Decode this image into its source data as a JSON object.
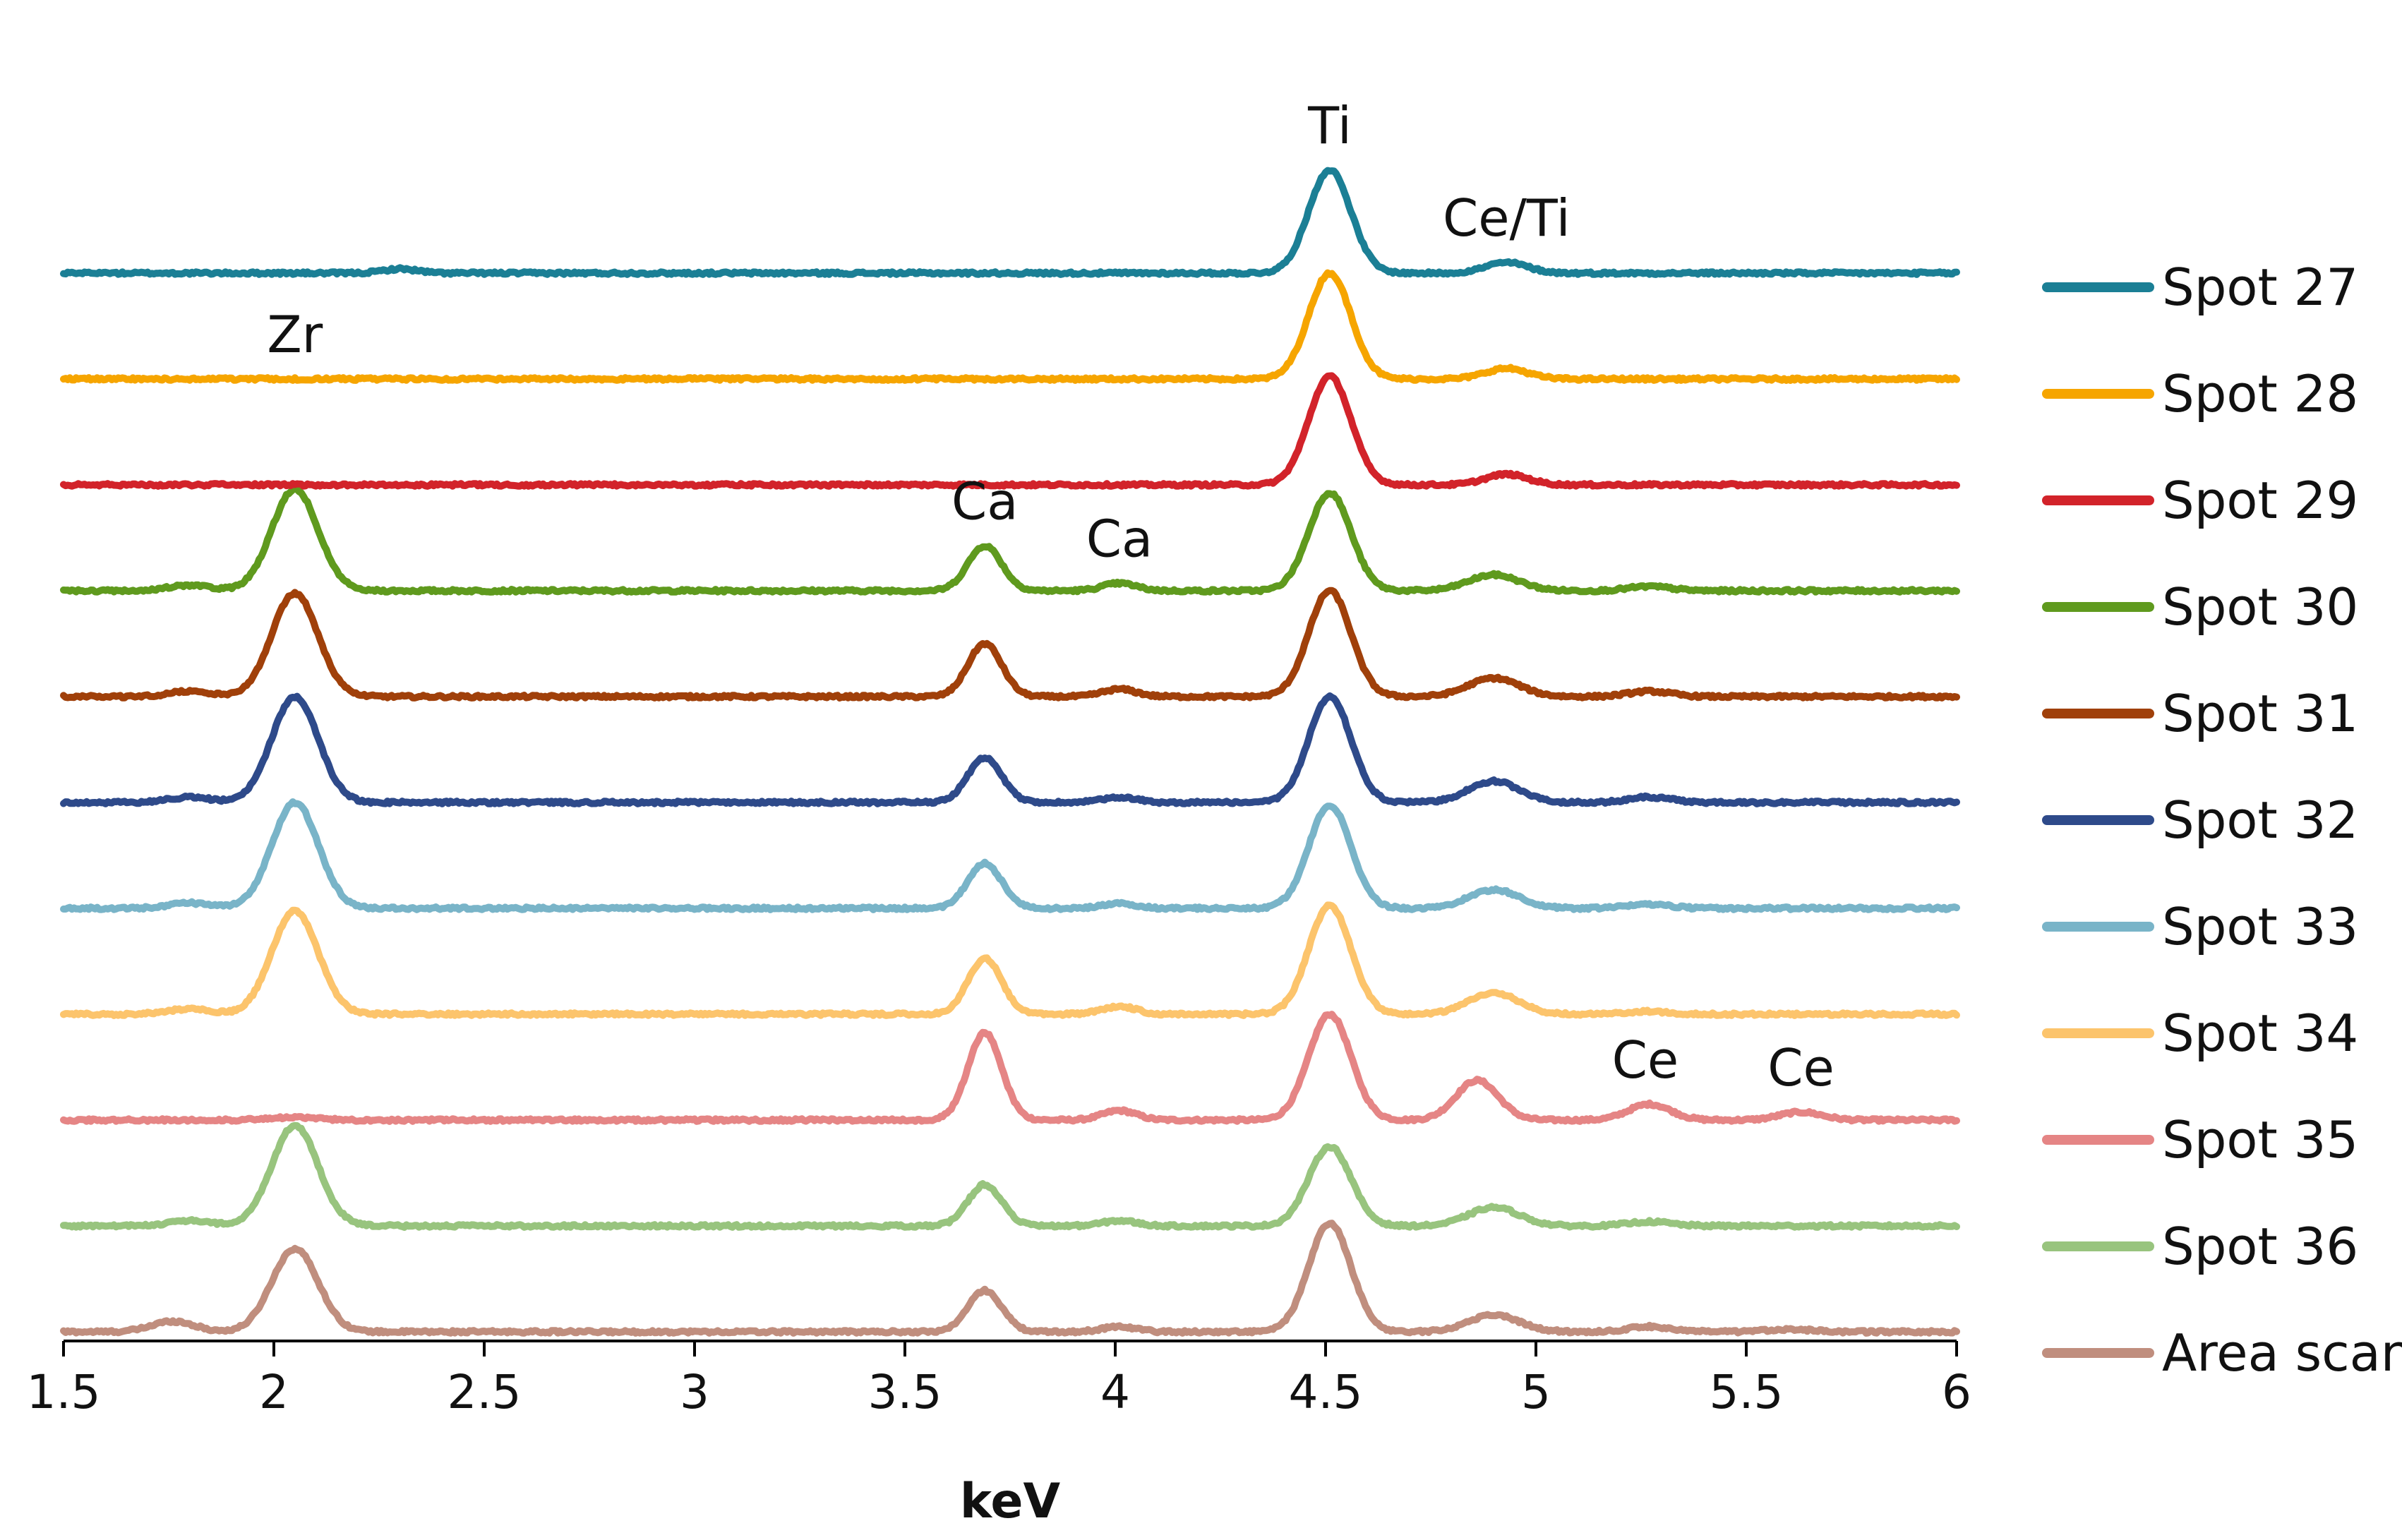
{
  "chart_data": {
    "type": "line",
    "title": "",
    "xlabel": "keV",
    "ylabel": "",
    "xlim": [
      1.5,
      6
    ],
    "x_ticks": [
      "1.5",
      "2",
      "2.5",
      "3",
      "3.5",
      "4",
      "4.5",
      "5",
      "5.5",
      "6"
    ],
    "y_axis_visible": false,
    "grid": false,
    "legend_position": "right",
    "peak_labels": [
      {
        "text": "Ti",
        "x": 4.51,
        "series": "Spot 27"
      },
      {
        "text": "Ce/Ti",
        "x": 4.93,
        "series": "Spot 27"
      },
      {
        "text": "Zr",
        "x": 2.05,
        "series": "Spot 28"
      },
      {
        "text": "Ca",
        "x": 3.69,
        "series": "Spot 30"
      },
      {
        "text": "Ca",
        "x": 4.01,
        "series": "Spot 30"
      },
      {
        "text": "Ce",
        "x": 5.26,
        "series": "Spot 35"
      },
      {
        "text": "Ce",
        "x": 5.63,
        "series": "Spot 35"
      }
    ],
    "series": [
      {
        "name": "Spot 27",
        "color": "#1b7f95",
        "offset": 14.0,
        "peaks": [
          [
            2.3,
            0.08,
            0.04
          ],
          [
            4.51,
            1.95,
            0.05
          ],
          [
            4.93,
            0.2,
            0.05
          ]
        ]
      },
      {
        "name": "Spot 28",
        "color": "#f6a500",
        "offset": 12.0,
        "peaks": [
          [
            4.51,
            2.0,
            0.05
          ],
          [
            4.93,
            0.2,
            0.05
          ]
        ]
      },
      {
        "name": "Spot 29",
        "color": "#d2232a",
        "offset": 10.0,
        "peaks": [
          [
            4.51,
            2.05,
            0.05
          ],
          [
            4.93,
            0.2,
            0.05
          ]
        ]
      },
      {
        "name": "Spot 30",
        "color": "#5f9a1e",
        "offset": 8.0,
        "peaks": [
          [
            1.8,
            0.1,
            0.05
          ],
          [
            2.05,
            1.92,
            0.055
          ],
          [
            3.69,
            0.85,
            0.04
          ],
          [
            4.01,
            0.14,
            0.04
          ],
          [
            4.51,
            1.85,
            0.05
          ],
          [
            4.9,
            0.3,
            0.06
          ],
          [
            5.27,
            0.08,
            0.05
          ]
        ]
      },
      {
        "name": "Spot 31",
        "color": "#a0400a",
        "offset": 6.0,
        "peaks": [
          [
            1.8,
            0.1,
            0.05
          ],
          [
            2.05,
            1.95,
            0.055
          ],
          [
            3.69,
            1.0,
            0.04
          ],
          [
            4.01,
            0.14,
            0.04
          ],
          [
            4.51,
            2.0,
            0.05
          ],
          [
            4.9,
            0.35,
            0.06
          ],
          [
            5.27,
            0.1,
            0.05
          ]
        ]
      },
      {
        "name": "Spot 32",
        "color": "#2e4a8a",
        "offset": 4.0,
        "peaks": [
          [
            1.8,
            0.1,
            0.05
          ],
          [
            2.05,
            2.0,
            0.055
          ],
          [
            3.69,
            0.85,
            0.04
          ],
          [
            4.01,
            0.1,
            0.04
          ],
          [
            4.51,
            2.0,
            0.05
          ],
          [
            4.9,
            0.4,
            0.06
          ],
          [
            5.27,
            0.1,
            0.05
          ]
        ]
      },
      {
        "name": "Spot 33",
        "color": "#79b4c8",
        "offset": 2.0,
        "peaks": [
          [
            1.8,
            0.1,
            0.05
          ],
          [
            2.05,
            2.0,
            0.055
          ],
          [
            3.69,
            0.85,
            0.04
          ],
          [
            4.01,
            0.1,
            0.04
          ],
          [
            4.51,
            1.95,
            0.05
          ],
          [
            4.9,
            0.35,
            0.06
          ],
          [
            5.27,
            0.08,
            0.05
          ]
        ]
      },
      {
        "name": "Spot 34",
        "color": "#fcc46c",
        "offset": 0.0,
        "peaks": [
          [
            1.8,
            0.1,
            0.05
          ],
          [
            2.05,
            1.95,
            0.055
          ],
          [
            3.69,
            1.05,
            0.04
          ],
          [
            4.01,
            0.15,
            0.04
          ],
          [
            4.51,
            2.05,
            0.05
          ],
          [
            4.9,
            0.4,
            0.06
          ],
          [
            5.27,
            0.05,
            0.05
          ]
        ]
      },
      {
        "name": "Spot 35",
        "color": "#e58585",
        "offset": -2.0,
        "peaks": [
          [
            2.05,
            0.05,
            0.055
          ],
          [
            3.69,
            1.65,
            0.04
          ],
          [
            4.01,
            0.18,
            0.04
          ],
          [
            4.51,
            2.0,
            0.05
          ],
          [
            4.86,
            0.75,
            0.05
          ],
          [
            5.27,
            0.3,
            0.05
          ],
          [
            5.63,
            0.15,
            0.05
          ]
        ]
      },
      {
        "name": "Spot 36",
        "color": "#98c47e",
        "offset": -4.0,
        "peaks": [
          [
            1.8,
            0.1,
            0.05
          ],
          [
            2.05,
            1.9,
            0.055
          ],
          [
            3.69,
            0.78,
            0.04
          ],
          [
            4.01,
            0.1,
            0.04
          ],
          [
            4.51,
            1.5,
            0.05
          ],
          [
            4.9,
            0.35,
            0.06
          ],
          [
            5.27,
            0.08,
            0.05
          ]
        ]
      },
      {
        "name": "Area scan",
        "color": "#c08e7e",
        "offset": -6.0,
        "peaks": [
          [
            1.76,
            0.2,
            0.05
          ],
          [
            2.05,
            1.57,
            0.055
          ],
          [
            3.69,
            0.78,
            0.04
          ],
          [
            4.01,
            0.1,
            0.04
          ],
          [
            4.51,
            2.05,
            0.05
          ],
          [
            4.9,
            0.32,
            0.06
          ],
          [
            5.27,
            0.1,
            0.05
          ],
          [
            5.6,
            0.05,
            0.05
          ]
        ]
      }
    ]
  }
}
